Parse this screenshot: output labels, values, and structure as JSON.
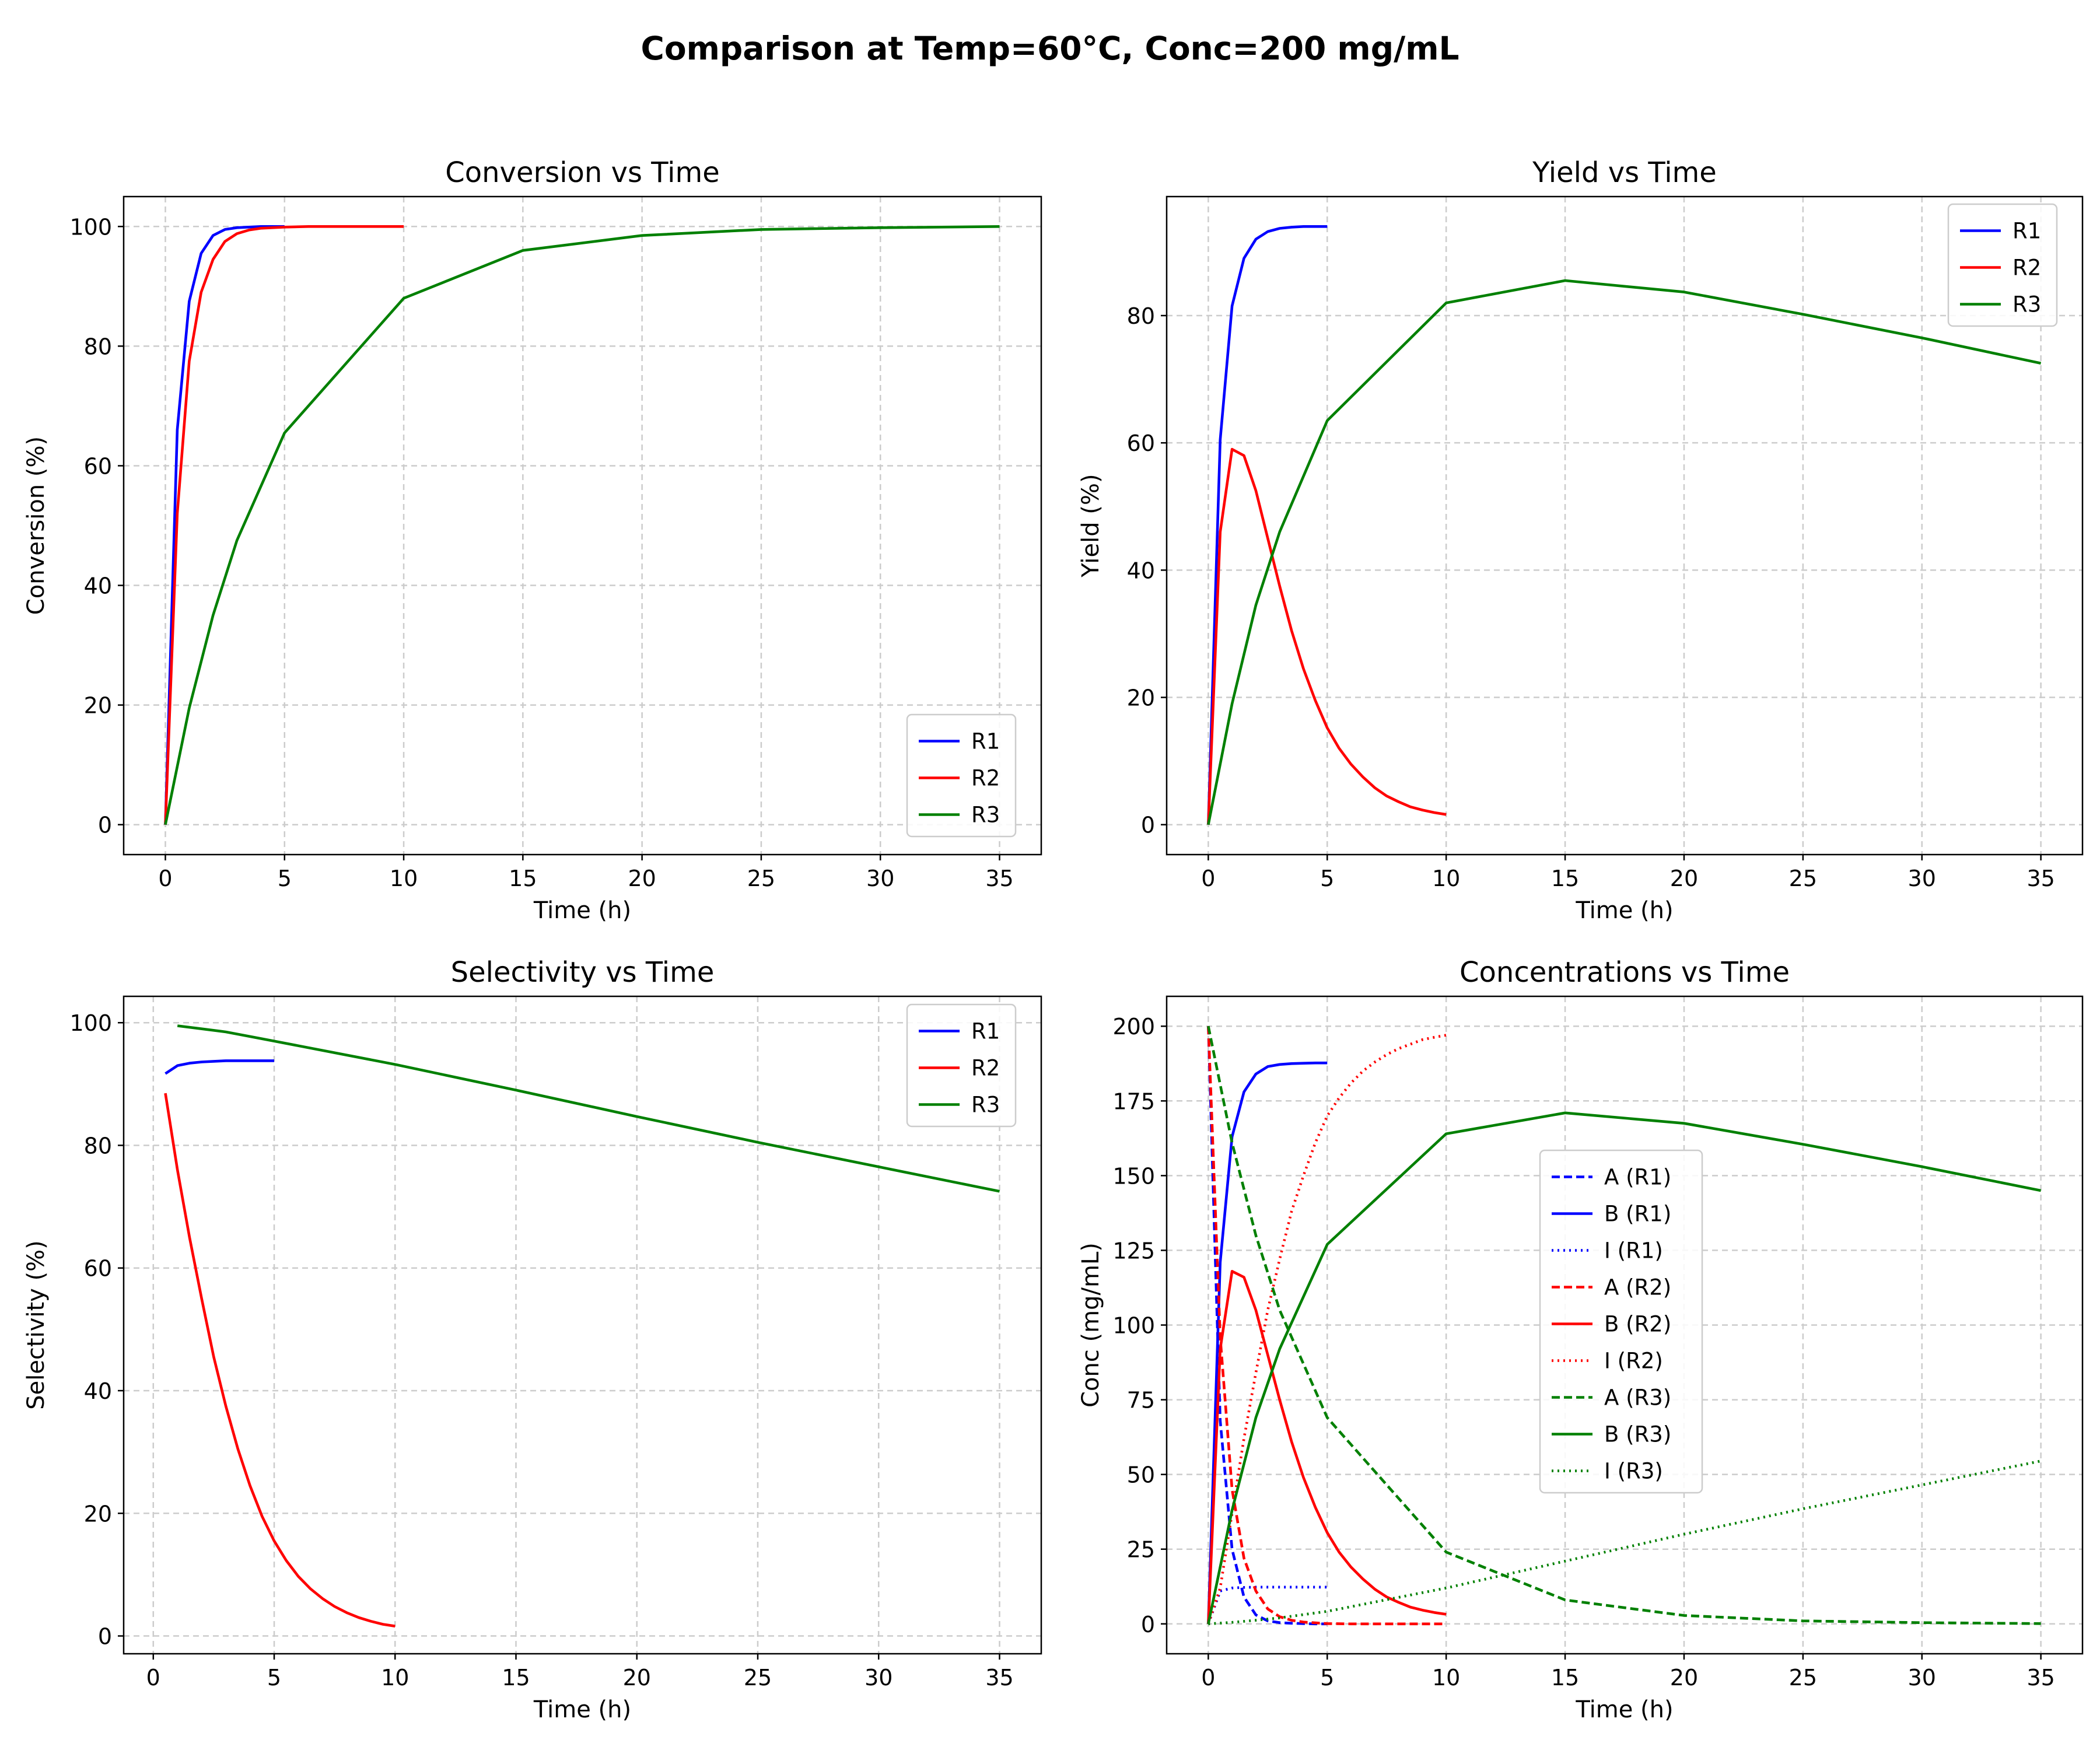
{
  "figure": {
    "title": "Comparison at Temp=60°C, Conc=200 mg/mL"
  },
  "colors": {
    "R1": "#0000ff",
    "R2": "#ff0000",
    "R3": "#008000"
  },
  "chart_data": [
    {
      "type": "line",
      "title": "Conversion vs Time",
      "xlabel": "Time (h)",
      "ylabel": "Conversion (%)",
      "xlim": [
        -1.75,
        36.75
      ],
      "ylim": [
        -5,
        105
      ],
      "xticks": [
        0,
        5,
        10,
        15,
        20,
        25,
        30,
        35
      ],
      "yticks": [
        0,
        20,
        40,
        60,
        80,
        100
      ],
      "grid": true,
      "legend": "bottom-right",
      "series": [
        {
          "name": "R1",
          "color": "#0000ff",
          "style": "solid",
          "x": [
            0,
            0.5,
            1,
            1.5,
            2,
            2.5,
            3,
            3.5,
            4,
            4.5,
            5
          ],
          "y": [
            0,
            66,
            87.5,
            95.5,
            98.5,
            99.5,
            99.8,
            99.9,
            100,
            100,
            100
          ]
        },
        {
          "name": "R2",
          "color": "#ff0000",
          "style": "solid",
          "x": [
            0,
            0.5,
            1,
            1.5,
            2,
            2.5,
            3,
            3.5,
            4,
            5,
            6,
            7,
            8,
            9,
            10
          ],
          "y": [
            0,
            52,
            77.5,
            89,
            94.5,
            97.5,
            98.8,
            99.4,
            99.7,
            99.9,
            100,
            100,
            100,
            100,
            100
          ]
        },
        {
          "name": "R3",
          "color": "#008000",
          "style": "solid",
          "x": [
            0,
            1,
            2,
            3,
            5,
            10,
            15,
            20,
            25,
            30,
            35
          ],
          "y": [
            0,
            19.5,
            35,
            47.5,
            65.5,
            88,
            96,
            98.5,
            99.5,
            99.8,
            100
          ]
        }
      ]
    },
    {
      "type": "line",
      "title": "Yield vs Time",
      "xlabel": "Time (h)",
      "ylabel": "Yield (%)",
      "xlim": [
        -1.75,
        36.75
      ],
      "ylim": [
        -4.7,
        98.7
      ],
      "xticks": [
        0,
        5,
        10,
        15,
        20,
        25,
        30,
        35
      ],
      "yticks": [
        0,
        20,
        40,
        60,
        80
      ],
      "grid": true,
      "legend": "top-right",
      "series": [
        {
          "name": "R1",
          "color": "#0000ff",
          "style": "solid",
          "x": [
            0,
            0.5,
            1,
            1.5,
            2,
            2.5,
            3,
            3.5,
            4,
            4.5,
            5
          ],
          "y": [
            0,
            60.5,
            81.5,
            89,
            92,
            93.2,
            93.7,
            93.9,
            94,
            94,
            94
          ]
        },
        {
          "name": "R2",
          "color": "#ff0000",
          "style": "solid",
          "x": [
            0,
            0.5,
            1,
            1.5,
            2,
            2.5,
            3,
            3.5,
            4,
            4.5,
            5,
            5.5,
            6,
            6.5,
            7,
            7.5,
            8,
            8.5,
            9,
            9.5,
            10
          ],
          "y": [
            0,
            46,
            59,
            58,
            52.5,
            45,
            37.5,
            30.5,
            24.5,
            19.5,
            15.2,
            12,
            9.5,
            7.5,
            5.8,
            4.5,
            3.6,
            2.8,
            2.3,
            1.9,
            1.6
          ]
        },
        {
          "name": "R3",
          "color": "#008000",
          "style": "solid",
          "x": [
            0,
            1,
            2,
            3,
            5,
            10,
            15,
            20,
            25,
            30,
            35
          ],
          "y": [
            0,
            19,
            34.5,
            46,
            63.5,
            82,
            85.5,
            83.7,
            80.2,
            76.5,
            72.5
          ]
        }
      ]
    },
    {
      "type": "line",
      "title": "Selectivity vs Time",
      "xlabel": "Time (h)",
      "ylabel": "Selectivity (%)",
      "xlim": [
        -1.225,
        36.725
      ],
      "ylim": [
        -2.9,
        104.3
      ],
      "xticks": [
        0,
        5,
        10,
        15,
        20,
        25,
        30,
        35
      ],
      "yticks": [
        0,
        20,
        40,
        60,
        80,
        100
      ],
      "grid": true,
      "legend": "top-right",
      "series": [
        {
          "name": "R1",
          "color": "#0000ff",
          "style": "solid",
          "x": [
            0.5,
            1,
            1.5,
            2,
            2.5,
            3,
            3.5,
            4,
            4.5,
            5
          ],
          "y": [
            91.7,
            93,
            93.4,
            93.6,
            93.7,
            93.8,
            93.8,
            93.8,
            93.8,
            93.8
          ]
        },
        {
          "name": "R2",
          "color": "#ff0000",
          "style": "solid",
          "x": [
            0.5,
            1,
            1.5,
            2,
            2.5,
            3,
            3.5,
            4,
            4.5,
            5,
            5.5,
            6,
            6.5,
            7,
            7.5,
            8,
            8.5,
            9,
            9.5,
            10
          ],
          "y": [
            88.5,
            76,
            65,
            55,
            45.5,
            37.5,
            30.5,
            24.5,
            19.5,
            15.5,
            12.3,
            9.7,
            7.7,
            6.1,
            4.8,
            3.8,
            3,
            2.4,
            1.9,
            1.6
          ]
        },
        {
          "name": "R3",
          "color": "#008000",
          "style": "solid",
          "x": [
            1,
            2,
            3,
            5,
            10,
            15,
            20,
            25,
            30,
            35
          ],
          "y": [
            99.5,
            99,
            98.5,
            97,
            93.2,
            89,
            84.7,
            80.5,
            76.5,
            72.5
          ]
        }
      ]
    },
    {
      "type": "line",
      "title": "Concentrations vs Time",
      "xlabel": "Time (h)",
      "ylabel": "Conc (mg/mL)",
      "xlim": [
        -1.75,
        36.75
      ],
      "ylim": [
        -10,
        210
      ],
      "xticks": [
        0,
        5,
        10,
        15,
        20,
        25,
        30,
        35
      ],
      "yticks": [
        0,
        25,
        50,
        75,
        100,
        125,
        150,
        175,
        200
      ],
      "grid": true,
      "legend": "center",
      "series": [
        {
          "name": "A (R1)",
          "color": "#0000ff",
          "style": "dashed",
          "x": [
            0,
            0.5,
            1,
            1.5,
            2,
            2.5,
            3,
            3.5,
            4,
            4.5,
            5
          ],
          "y": [
            200,
            68,
            25,
            9,
            3,
            1,
            0.4,
            0.2,
            0.1,
            0,
            0
          ]
        },
        {
          "name": "B (R1)",
          "color": "#0000ff",
          "style": "solid",
          "x": [
            0,
            0.5,
            1,
            1.5,
            2,
            2.5,
            3,
            3.5,
            4,
            4.5,
            5
          ],
          "y": [
            0,
            121,
            163,
            178,
            184,
            186.5,
            187.2,
            187.5,
            187.6,
            187.7,
            187.7
          ]
        },
        {
          "name": "I (R1)",
          "color": "#0000ff",
          "style": "dotted",
          "x": [
            0,
            0.5,
            1,
            1.5,
            2,
            2.5,
            3,
            3.5,
            4,
            4.5,
            5
          ],
          "y": [
            0,
            11,
            12,
            12.2,
            12.3,
            12.3,
            12.3,
            12.3,
            12.3,
            12.3,
            12.3
          ]
        },
        {
          "name": "A (R2)",
          "color": "#ff0000",
          "style": "dashed",
          "x": [
            0,
            0.5,
            1,
            1.5,
            2,
            2.5,
            3,
            3.5,
            4,
            5,
            6,
            7,
            8,
            9,
            10
          ],
          "y": [
            200,
            96,
            45,
            22,
            11,
            5,
            2.4,
            1.2,
            0.6,
            0.1,
            0,
            0,
            0,
            0,
            0
          ]
        },
        {
          "name": "B (R2)",
          "color": "#ff0000",
          "style": "solid",
          "x": [
            0,
            0.5,
            1,
            1.5,
            2,
            2.5,
            3,
            3.5,
            4,
            4.5,
            5,
            5.5,
            6,
            6.5,
            7,
            7.5,
            8,
            8.5,
            9,
            9.5,
            10
          ],
          "y": [
            0,
            92,
            118,
            116,
            105,
            90,
            75,
            61,
            49,
            39,
            30.5,
            24,
            19,
            15,
            11.6,
            9,
            7.2,
            5.6,
            4.6,
            3.8,
            3.2
          ]
        },
        {
          "name": "I (R2)",
          "color": "#ff0000",
          "style": "dotted",
          "x": [
            0,
            0.5,
            1,
            1.5,
            2,
            2.5,
            3,
            3.5,
            4,
            4.5,
            5,
            5.5,
            6,
            6.5,
            7,
            7.5,
            8,
            8.5,
            9,
            9.5,
            10
          ],
          "y": [
            0,
            12,
            37,
            62,
            84,
            105,
            122,
            138,
            150,
            161,
            170,
            176,
            181,
            185,
            188,
            190.5,
            192.5,
            194,
            195.5,
            196.3,
            197
          ]
        },
        {
          "name": "A (R3)",
          "color": "#008000",
          "style": "dashed",
          "x": [
            0,
            1,
            2,
            3,
            5,
            10,
            15,
            20,
            25,
            30,
            35
          ],
          "y": [
            200,
            161,
            130,
            105,
            69,
            24,
            8,
            2.8,
            1,
            0.4,
            0.1
          ]
        },
        {
          "name": "B (R3)",
          "color": "#008000",
          "style": "solid",
          "x": [
            0,
            1,
            2,
            3,
            5,
            10,
            15,
            20,
            25,
            30,
            35
          ],
          "y": [
            0,
            38,
            69,
            92,
            127,
            164,
            171,
            167.5,
            160.5,
            153,
            145
          ]
        },
        {
          "name": "I (R3)",
          "color": "#008000",
          "style": "dotted",
          "x": [
            0,
            1,
            2,
            3,
            5,
            10,
            15,
            20,
            25,
            30,
            35
          ],
          "y": [
            0,
            0.5,
            1.2,
            2,
            4.2,
            12,
            21,
            30,
            38.5,
            46.5,
            54.5
          ]
        }
      ]
    }
  ]
}
